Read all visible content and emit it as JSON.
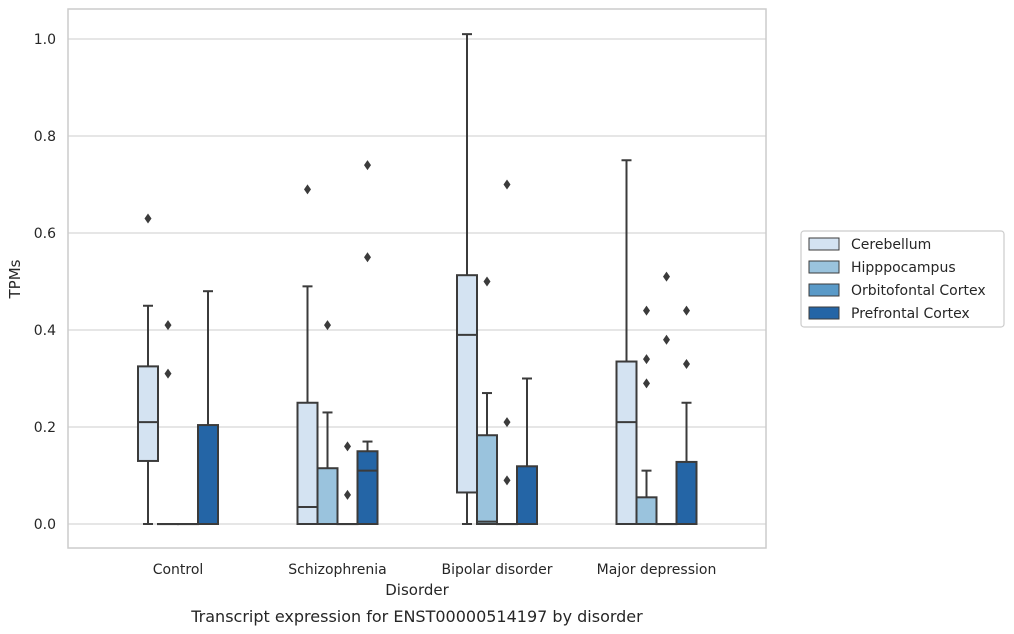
{
  "chart_data": {
    "type": "box",
    "title": "",
    "caption": "Transcript expression for ENST00000514197 by disorder",
    "xlabel": "Disorder",
    "ylabel": "TPMs",
    "ylim": [
      -0.05,
      1.06
    ],
    "yticks": [
      "0.0",
      "0.2",
      "0.4",
      "0.6",
      "0.8",
      "1.0"
    ],
    "grid": "horizontal",
    "legend_position": "right",
    "categories": [
      "Control",
      "Schizophrenia",
      "Bipolar disorder",
      "Major depression"
    ],
    "series": [
      {
        "name": "Cerebellum",
        "color": "#d4e3f2",
        "boxes": [
          {
            "category": "Control",
            "whisker_low": 0.0,
            "q1": 0.13,
            "median": 0.21,
            "q3": 0.325,
            "whisker_high": 0.45,
            "outliers": [
              0.63
            ]
          },
          {
            "category": "Schizophrenia",
            "whisker_low": 0.0,
            "q1": 0.0,
            "median": 0.035,
            "q3": 0.25,
            "whisker_high": 0.49,
            "outliers": [
              0.69
            ]
          },
          {
            "category": "Bipolar disorder",
            "whisker_low": 0.0,
            "q1": 0.065,
            "median": 0.39,
            "q3": 0.513,
            "whisker_high": 1.01,
            "outliers": []
          },
          {
            "category": "Major depression",
            "whisker_low": 0.0,
            "q1": 0.0,
            "median": 0.21,
            "q3": 0.335,
            "whisker_high": 0.75,
            "outliers": []
          }
        ]
      },
      {
        "name": "Hipppocampus",
        "color": "#9ac3dd",
        "boxes": [
          {
            "category": "Control",
            "whisker_low": 0.0,
            "q1": 0.0,
            "median": 0.0,
            "q3": 0.0,
            "whisker_high": 0.0,
            "outliers": [
              0.31,
              0.41
            ]
          },
          {
            "category": "Schizophrenia",
            "whisker_low": 0.0,
            "q1": 0.0,
            "median": 0.0,
            "q3": 0.115,
            "whisker_high": 0.23,
            "outliers": [
              0.41
            ]
          },
          {
            "category": "Bipolar disorder",
            "whisker_low": 0.0,
            "q1": 0.0,
            "median": 0.005,
            "q3": 0.183,
            "whisker_high": 0.27,
            "outliers": [
              0.5
            ]
          },
          {
            "category": "Major depression",
            "whisker_low": 0.0,
            "q1": 0.0,
            "median": 0.0,
            "q3": 0.055,
            "whisker_high": 0.11,
            "outliers": [
              0.29,
              0.34,
              0.44
            ]
          }
        ]
      },
      {
        "name": "Orbitofontal Cortex",
        "color": "#5a9ac8",
        "boxes": [
          {
            "category": "Control",
            "whisker_low": 0.0,
            "q1": 0.0,
            "median": 0.0,
            "q3": 0.0,
            "whisker_high": 0.0,
            "outliers": []
          },
          {
            "category": "Schizophrenia",
            "whisker_low": 0.0,
            "q1": 0.0,
            "median": 0.0,
            "q3": 0.0,
            "whisker_high": 0.0,
            "outliers": [
              0.06,
              0.16
            ]
          },
          {
            "category": "Bipolar disorder",
            "whisker_low": 0.0,
            "q1": 0.0,
            "median": 0.0,
            "q3": 0.0,
            "whisker_high": 0.0,
            "outliers": [
              0.09,
              0.21,
              0.7
            ]
          },
          {
            "category": "Major depression",
            "whisker_low": 0.0,
            "q1": 0.0,
            "median": 0.0,
            "q3": 0.0,
            "whisker_high": 0.0,
            "outliers": [
              0.38,
              0.51
            ]
          }
        ]
      },
      {
        "name": "Prefrontal Cortex",
        "color": "#2465a6",
        "boxes": [
          {
            "category": "Control",
            "whisker_low": 0.0,
            "q1": 0.0,
            "median": 0.0,
            "q3": 0.204,
            "whisker_high": 0.48,
            "outliers": []
          },
          {
            "category": "Schizophrenia",
            "whisker_low": 0.0,
            "q1": 0.0,
            "median": 0.11,
            "q3": 0.15,
            "whisker_high": 0.17,
            "outliers": [
              0.55,
              0.74
            ]
          },
          {
            "category": "Bipolar disorder",
            "whisker_low": 0.0,
            "q1": 0.0,
            "median": 0.0,
            "q3": 0.119,
            "whisker_high": 0.3,
            "outliers": []
          },
          {
            "category": "Major depression",
            "whisker_low": 0.0,
            "q1": 0.0,
            "median": 0.0,
            "q3": 0.128,
            "whisker_high": 0.25,
            "outliers": [
              0.33,
              0.44
            ]
          }
        ]
      }
    ]
  }
}
